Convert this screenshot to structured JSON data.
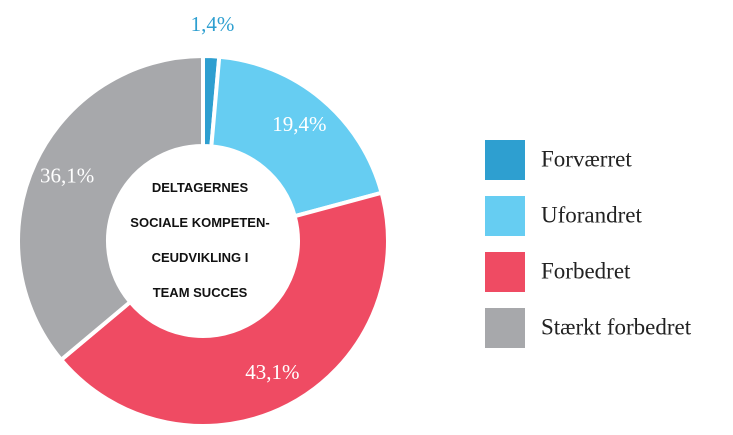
{
  "chart_data": {
    "type": "donut",
    "center_text": [
      "DELTAGERNES",
      "SOCIALE KOMPETEN-",
      "CEUDVIKLING I",
      "TEAM SUCCES"
    ],
    "categories": [
      "Forværret",
      "Uforandret",
      "Forbedret",
      "Stærkt forbedret"
    ],
    "values": [
      1.4,
      19.4,
      43.1,
      36.1
    ],
    "value_labels": [
      "1,4%",
      "19,4%",
      "43,1%",
      "36,1%"
    ],
    "colors": [
      "#2e9fd0",
      "#66cdf2",
      "#ef4b63",
      "#a7a8ab"
    ]
  }
}
